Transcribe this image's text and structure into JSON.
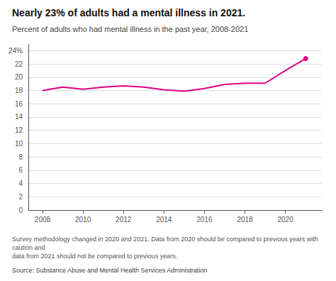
{
  "chart_data": {
    "type": "line",
    "title": "Nearly 23% of adults had a mental illness in 2021.",
    "subtitle": "Percent of adults who had mental illness in the past year, 2008-2021",
    "footnote": "Survey methodology changed in 2020 and 2021. Data from 2020 should be compared to previous years with caution and\ndata from 2021 should not be compared to previous years.",
    "source": "Source: Substance Abuse and Mental Health Services Administration",
    "x": [
      2008,
      2009,
      2010,
      2011,
      2012,
      2013,
      2014,
      2015,
      2016,
      2017,
      2018,
      2019,
      2020,
      2021
    ],
    "values": [
      18.0,
      18.5,
      18.2,
      18.5,
      18.7,
      18.5,
      18.1,
      17.9,
      18.3,
      18.9,
      19.1,
      19.1,
      21.0,
      22.8
    ],
    "color": "#e0007f",
    "marker": "circle",
    "xlim": [
      2007.3,
      2021.8
    ],
    "xticks": [
      2008,
      2010,
      2012,
      2014,
      2016,
      2018,
      2020
    ],
    "ylim": [
      0,
      25
    ],
    "yticks": [
      0,
      2,
      4,
      6,
      8,
      10,
      12,
      14,
      16,
      18,
      20,
      22,
      {
        "value": 24,
        "label": "24%"
      }
    ],
    "grid": true
  }
}
